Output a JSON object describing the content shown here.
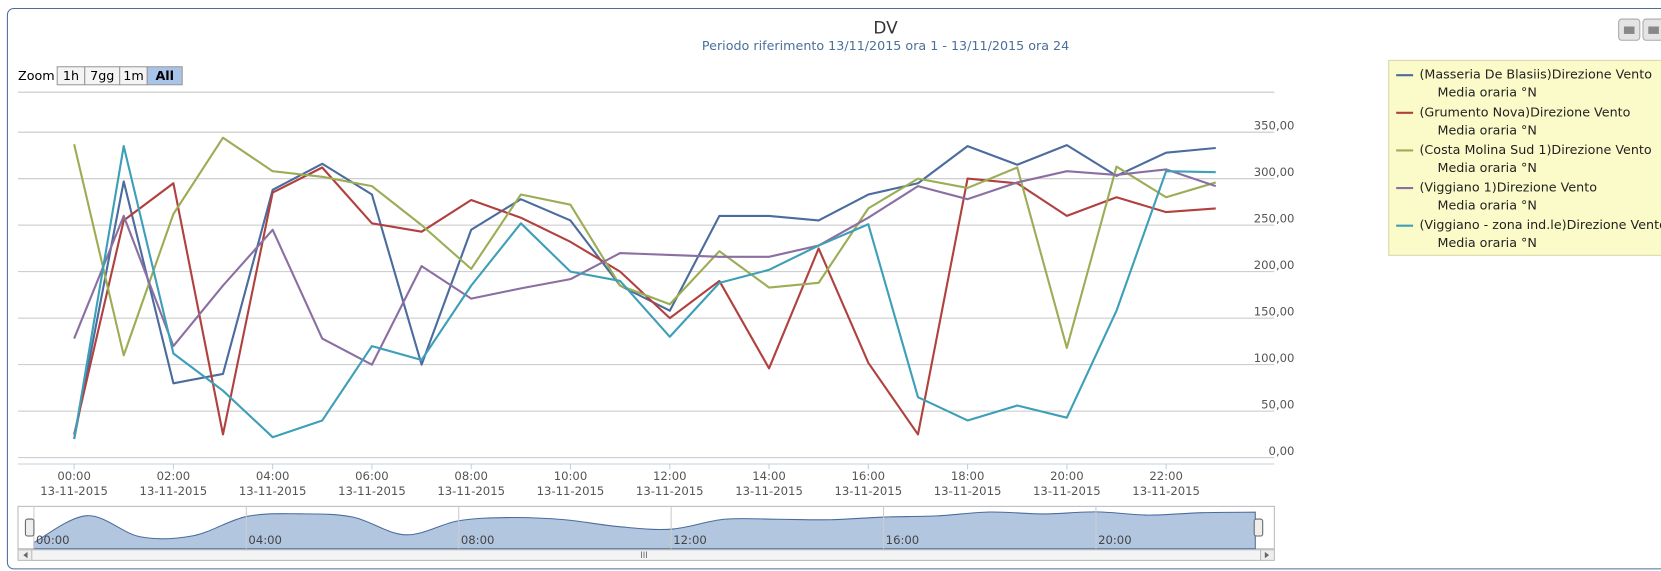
{
  "chart_data": {
    "type": "line",
    "title": "DV",
    "subtitle": "Periodo riferimento 13/11/2015 ora 1 - 13/11/2015 ora 24",
    "zoom_label": "Zoom",
    "zoom_buttons": [
      "1h",
      "7gg",
      "1m",
      "All"
    ],
    "zoom_selected": "All",
    "x": [
      0,
      1,
      2,
      3,
      4,
      5,
      6,
      7,
      8,
      9,
      10,
      11,
      12,
      13,
      14,
      15,
      16,
      17,
      18,
      19,
      20,
      21,
      22,
      23
    ],
    "xlim": [
      -1.13,
      24.18
    ],
    "xticks": [
      {
        "value": 0,
        "label": "00:00",
        "date": "13-11-2015"
      },
      {
        "value": 2,
        "label": "02:00",
        "date": "13-11-2015"
      },
      {
        "value": 4,
        "label": "04:00",
        "date": "13-11-2015"
      },
      {
        "value": 6,
        "label": "06:00",
        "date": "13-11-2015"
      },
      {
        "value": 8,
        "label": "08:00",
        "date": "13-11-2015"
      },
      {
        "value": 10,
        "label": "10:00",
        "date": "13-11-2015"
      },
      {
        "value": 12,
        "label": "12:00",
        "date": "13-11-2015"
      },
      {
        "value": 14,
        "label": "14:00",
        "date": "13-11-2015"
      },
      {
        "value": 16,
        "label": "16:00",
        "date": "13-11-2015"
      },
      {
        "value": 18,
        "label": "18:00",
        "date": "13-11-2015"
      },
      {
        "value": 20,
        "label": "20:00",
        "date": "13-11-2015"
      },
      {
        "value": 22,
        "label": "22:00",
        "date": "13-11-2015"
      }
    ],
    "ylim": [
      0,
      393
    ],
    "yticks": [
      {
        "value": 0,
        "label": "0,00"
      },
      {
        "value": 50,
        "label": "50,00"
      },
      {
        "value": 100,
        "label": "100,00"
      },
      {
        "value": 150,
        "label": "150,00"
      },
      {
        "value": 200,
        "label": "200,00"
      },
      {
        "value": 250,
        "label": "250,00"
      },
      {
        "value": 300,
        "label": "300,00"
      },
      {
        "value": 350,
        "label": "350,00"
      }
    ],
    "grid": true,
    "legend": "top-right",
    "series": [
      {
        "name": "(Masseria De Blasiis)Direzione Vento",
        "unit": "Media oraria °N",
        "color": "#4b6c9e",
        "values": [
          20,
          297,
          80,
          90,
          288,
          316,
          283,
          100,
          245,
          278,
          255,
          185,
          158,
          260,
          260,
          255,
          283,
          295,
          335,
          315,
          336,
          303,
          328,
          333
        ]
      },
      {
        "name": "(Grumento Nova)Direzione Vento",
        "unit": "Media oraria °N",
        "color": "#b0413e",
        "values": [
          25,
          255,
          295,
          25,
          285,
          312,
          252,
          243,
          277,
          258,
          232,
          200,
          150,
          190,
          96,
          225,
          102,
          25,
          300,
          295,
          260,
          280,
          264,
          268
        ]
      },
      {
        "name": "(Costa Molina Sud 1)Direzione Vento",
        "unit": "Media oraria °N",
        "color": "#9bad55",
        "values": [
          337,
          110,
          262,
          344,
          308,
          302,
          292,
          250,
          203,
          283,
          272,
          185,
          165,
          222,
          183,
          188,
          268,
          300,
          290,
          312,
          118,
          313,
          280,
          296
        ]
      },
      {
        "name": "(Viggiano 1)Direzione Vento",
        "unit": "Media oraria °N",
        "color": "#8b6fa3",
        "values": [
          128,
          260,
          120,
          185,
          245,
          128,
          100,
          206,
          171,
          182,
          192,
          220,
          218,
          216,
          216,
          228,
          258,
          292,
          278,
          296,
          308,
          304,
          310,
          292
        ]
      },
      {
        "name": "(Viggiano - zona ind.le)Direzione Vento",
        "unit": "Media oraria °N",
        "color": "#3d9fb8",
        "values": [
          20,
          335,
          112,
          72,
          22,
          40,
          120,
          105,
          185,
          252,
          200,
          190,
          130,
          188,
          202,
          228,
          251,
          65,
          40,
          56,
          43,
          158,
          308,
          307
        ]
      }
    ],
    "navigator": {
      "series": 0,
      "xticks": [
        {
          "value": 0,
          "label": "00:00"
        },
        {
          "value": 4,
          "label": "04:00"
        },
        {
          "value": 8,
          "label": "08:00"
        },
        {
          "value": 12,
          "label": "12:00"
        },
        {
          "value": 16,
          "label": "16:00"
        },
        {
          "value": 20,
          "label": "20:00"
        }
      ],
      "scroll_label": "III"
    }
  }
}
